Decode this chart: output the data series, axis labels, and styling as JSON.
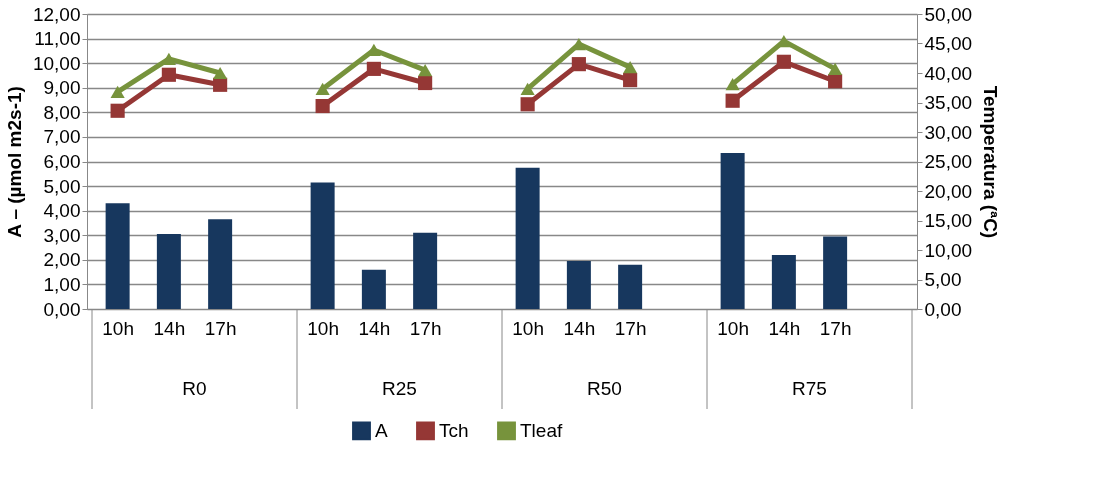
{
  "chart_data": {
    "type": "bar",
    "categories": [
      "10h",
      "14h",
      "17h",
      null,
      "10h",
      "14h",
      "17h",
      null,
      "10h",
      "14h",
      "17h",
      null,
      "10h",
      "14h",
      "17h",
      null
    ],
    "ylabel": "A – (µmol m2s-1)",
    "y2label": "Temperatura (ªC)",
    "ylim": [
      0,
      12
    ],
    "yticks": [
      {
        "value": 0,
        "label": "0,00"
      },
      {
        "value": 1,
        "label": "1,00"
      },
      {
        "value": 2,
        "label": "2,00"
      },
      {
        "value": 3,
        "label": "3,00"
      },
      {
        "value": 4,
        "label": "4,00"
      },
      {
        "value": 5,
        "label": "5,00"
      },
      {
        "value": 6,
        "label": "6,00"
      },
      {
        "value": 7,
        "label": "7,00"
      },
      {
        "value": 8,
        "label": "8,00"
      },
      {
        "value": 9,
        "label": "9,00"
      },
      {
        "value": 10,
        "label": "10,00"
      },
      {
        "value": 11,
        "label": "11,00"
      },
      {
        "value": 12,
        "label": "12,00"
      }
    ],
    "y2lim": [
      0,
      50
    ],
    "y2ticks": [
      {
        "value": 0,
        "label": "0,00"
      },
      {
        "value": 5,
        "label": "5,00"
      },
      {
        "value": 10,
        "label": "10,00"
      },
      {
        "value": 15,
        "label": "15,00"
      },
      {
        "value": 20,
        "label": "20,00"
      },
      {
        "value": 25,
        "label": "25,00"
      },
      {
        "value": 30,
        "label": "30,00"
      },
      {
        "value": 35,
        "label": "35,00"
      },
      {
        "value": 40,
        "label": "40,00"
      },
      {
        "value": 45,
        "label": "45,00"
      },
      {
        "value": 50,
        "label": "50,00"
      }
    ],
    "series": [
      {
        "name": "A",
        "color": "#17375e",
        "values": [
          4.3,
          3.05,
          3.65,
          null,
          5.15,
          1.6,
          3.1,
          null,
          5.75,
          1.95,
          1.8,
          null,
          6.35,
          2.2,
          2.95,
          null
        ]
      },
      {
        "name": "Tch",
        "type": "line",
        "axis": "y2",
        "marker": "square",
        "color": "#953735",
        "values": [
          33.6,
          39.7,
          38.0,
          null,
          34.4,
          40.7,
          38.3,
          null,
          34.7,
          41.5,
          38.8,
          null,
          35.3,
          41.9,
          38.6,
          null
        ]
      },
      {
        "name": "Tleaf",
        "type": "line",
        "axis": "y2",
        "marker": "triangle",
        "color": "#77933c",
        "values": [
          36.8,
          42.4,
          40.0,
          null,
          37.3,
          43.9,
          40.5,
          null,
          37.3,
          44.9,
          41.0,
          null,
          38.1,
          45.4,
          40.7,
          null
        ]
      }
    ],
    "annotations": [
      "R0",
      "R25",
      "R50",
      "R75"
    ],
    "grid": "y",
    "legend": "bottom"
  }
}
